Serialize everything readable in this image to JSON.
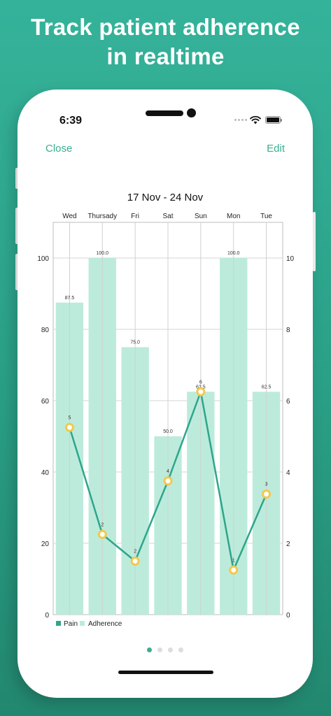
{
  "headline": {
    "line1": "Track patient adherence",
    "line2": "in realtime"
  },
  "status_bar": {
    "time": "6:39"
  },
  "nav": {
    "close_label": "Close",
    "edit_label": "Edit"
  },
  "page_indicator": {
    "count": 4,
    "active": 0
  },
  "colors": {
    "background": "#2fa58b",
    "accent": "#3aae92",
    "bar_fill": "#bcebdc",
    "line": "#2fa58b",
    "point_ring": "#f2c94c"
  },
  "chart_data": {
    "type": "bar",
    "title": "17 Nov - 24 Nov",
    "categories": [
      "Wed",
      "Thursady",
      "Fri",
      "Sat",
      "Sun",
      "Mon",
      "Tue"
    ],
    "y_left_ticks": [
      "0",
      "20",
      "40",
      "60",
      "80",
      "100"
    ],
    "y_right_ticks": [
      "0",
      "2",
      "4",
      "6",
      "8",
      "10"
    ],
    "ylim_left": [
      0,
      110
    ],
    "ylim_right": [
      0,
      11
    ],
    "grid": true,
    "legend_position": "bottom-left",
    "series": [
      {
        "name": "Adherence",
        "type": "bar",
        "axis": "left",
        "values": [
          87.5,
          100.0,
          75.0,
          50.0,
          62.5,
          100.0,
          62.5
        ],
        "labels": [
          "87.5",
          "100.0",
          "75.0",
          "50.0",
          "62.5",
          "100.0",
          "62.5"
        ]
      },
      {
        "name": "Pain",
        "type": "line",
        "axis": "right",
        "values": [
          5.25,
          2.25,
          1.5,
          3.75,
          6.25,
          1.25,
          3.38
        ],
        "labels": [
          "5",
          "2",
          "2",
          "4",
          "6",
          "1",
          "3"
        ]
      }
    ],
    "legend": [
      "Pain",
      "Adherence"
    ]
  }
}
